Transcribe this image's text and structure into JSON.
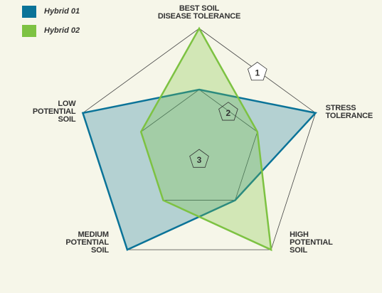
{
  "chart_data": {
    "type": "radar",
    "categories": [
      "BEST SOIL\nDISEASE TOLERANCE",
      "STRESS\nTOLERANCE",
      "HIGH\nPOTENTIAL\nSOIL",
      "MEDIUM\nPOTENTIAL\nSOIL",
      "LOW\nPOTENTIAL\nSOIL"
    ],
    "series": [
      {
        "name": "Hybrid 01",
        "color": "#0a7398",
        "values": [
          2,
          1,
          2,
          1,
          1
        ]
      },
      {
        "name": "Hybrid 02",
        "color": "#7dc242",
        "values": [
          1,
          2,
          1,
          2,
          2
        ]
      }
    ],
    "rlim": [
      3,
      1
    ],
    "rticks": [
      1,
      2,
      3
    ],
    "legend": "upper left"
  }
}
